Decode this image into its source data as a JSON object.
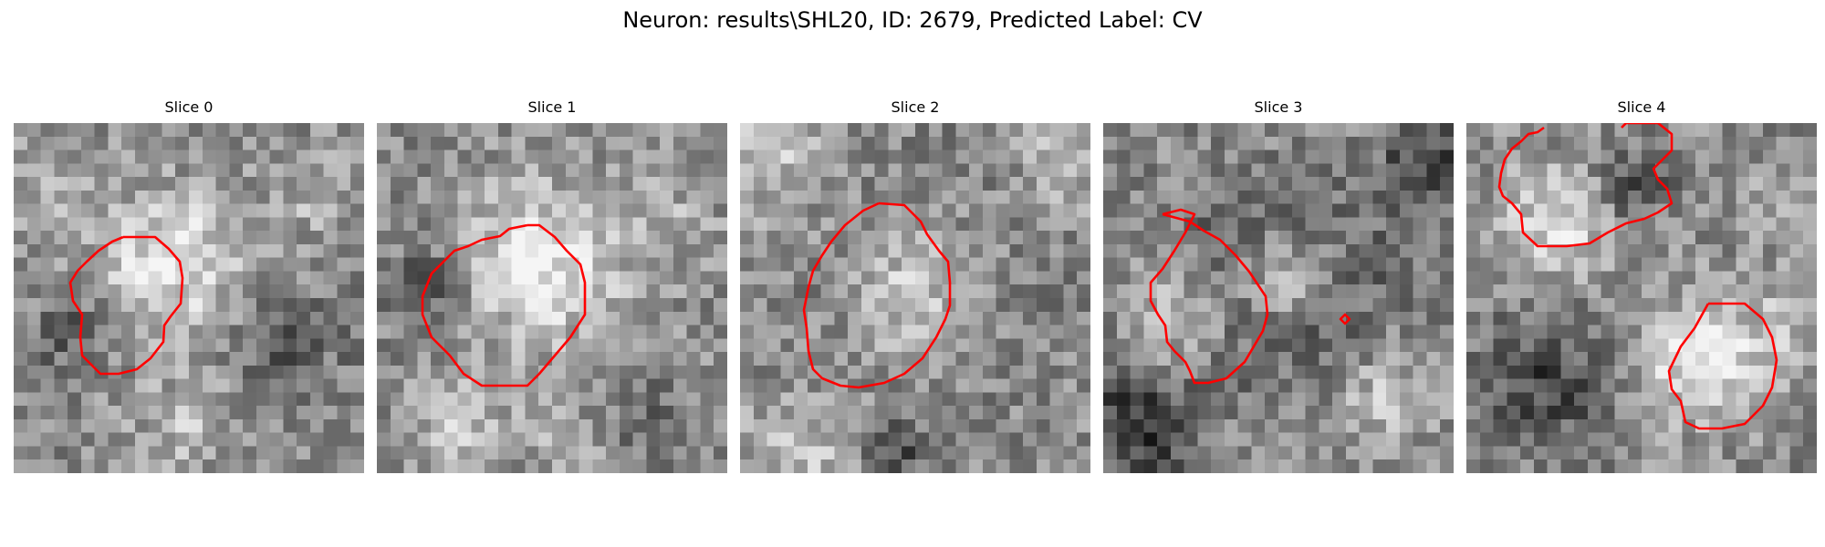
{
  "figure": {
    "title": "Neuron: results\\SHL20, ID: 2679, Predicted Label: CV",
    "contour_color": "#ff0000",
    "colormap": "gray"
  },
  "panels": [
    {
      "title": "Slice 0"
    },
    {
      "title": "Slice 1"
    },
    {
      "title": "Slice 2"
    },
    {
      "title": "Slice 3"
    },
    {
      "title": "Slice 4"
    }
  ]
}
